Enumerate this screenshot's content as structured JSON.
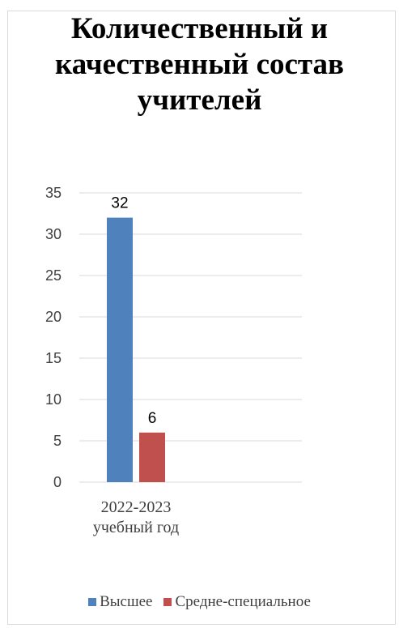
{
  "chart_data": {
    "type": "bar",
    "title_lines": [
      "Количественный и",
      "качественный состав",
      "учителей"
    ],
    "categories": [
      "2022-2023 учебный год"
    ],
    "category_label_lines": [
      "2022-2023",
      "учебный год"
    ],
    "series": [
      {
        "name": "Высшее",
        "values": [
          32
        ],
        "color": "#4f81bd"
      },
      {
        "name": "Средне-специальное",
        "values": [
          6
        ],
        "color": "#c0504d"
      }
    ],
    "ylim": [
      0,
      35
    ],
    "yticks": [
      0,
      5,
      10,
      15,
      20,
      25,
      30,
      35
    ],
    "grid": true,
    "legend_position": "bottom",
    "data_labels": true
  }
}
